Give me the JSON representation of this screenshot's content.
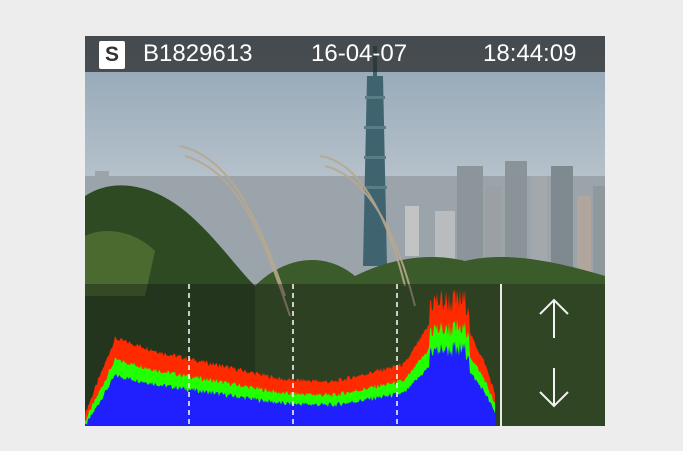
{
  "info_bar": {
    "mode_badge": "S",
    "image_id": "B1829613",
    "date": "16-04-07",
    "time": "18:44:09"
  },
  "histogram": {
    "channels": [
      "red",
      "green",
      "blue"
    ],
    "colors": {
      "red": "#ff2a00",
      "green": "#22ff00",
      "blue": "#2020ff"
    }
  },
  "controls": {
    "up_icon": "arrow-up-icon",
    "down_icon": "arrow-down-icon"
  }
}
